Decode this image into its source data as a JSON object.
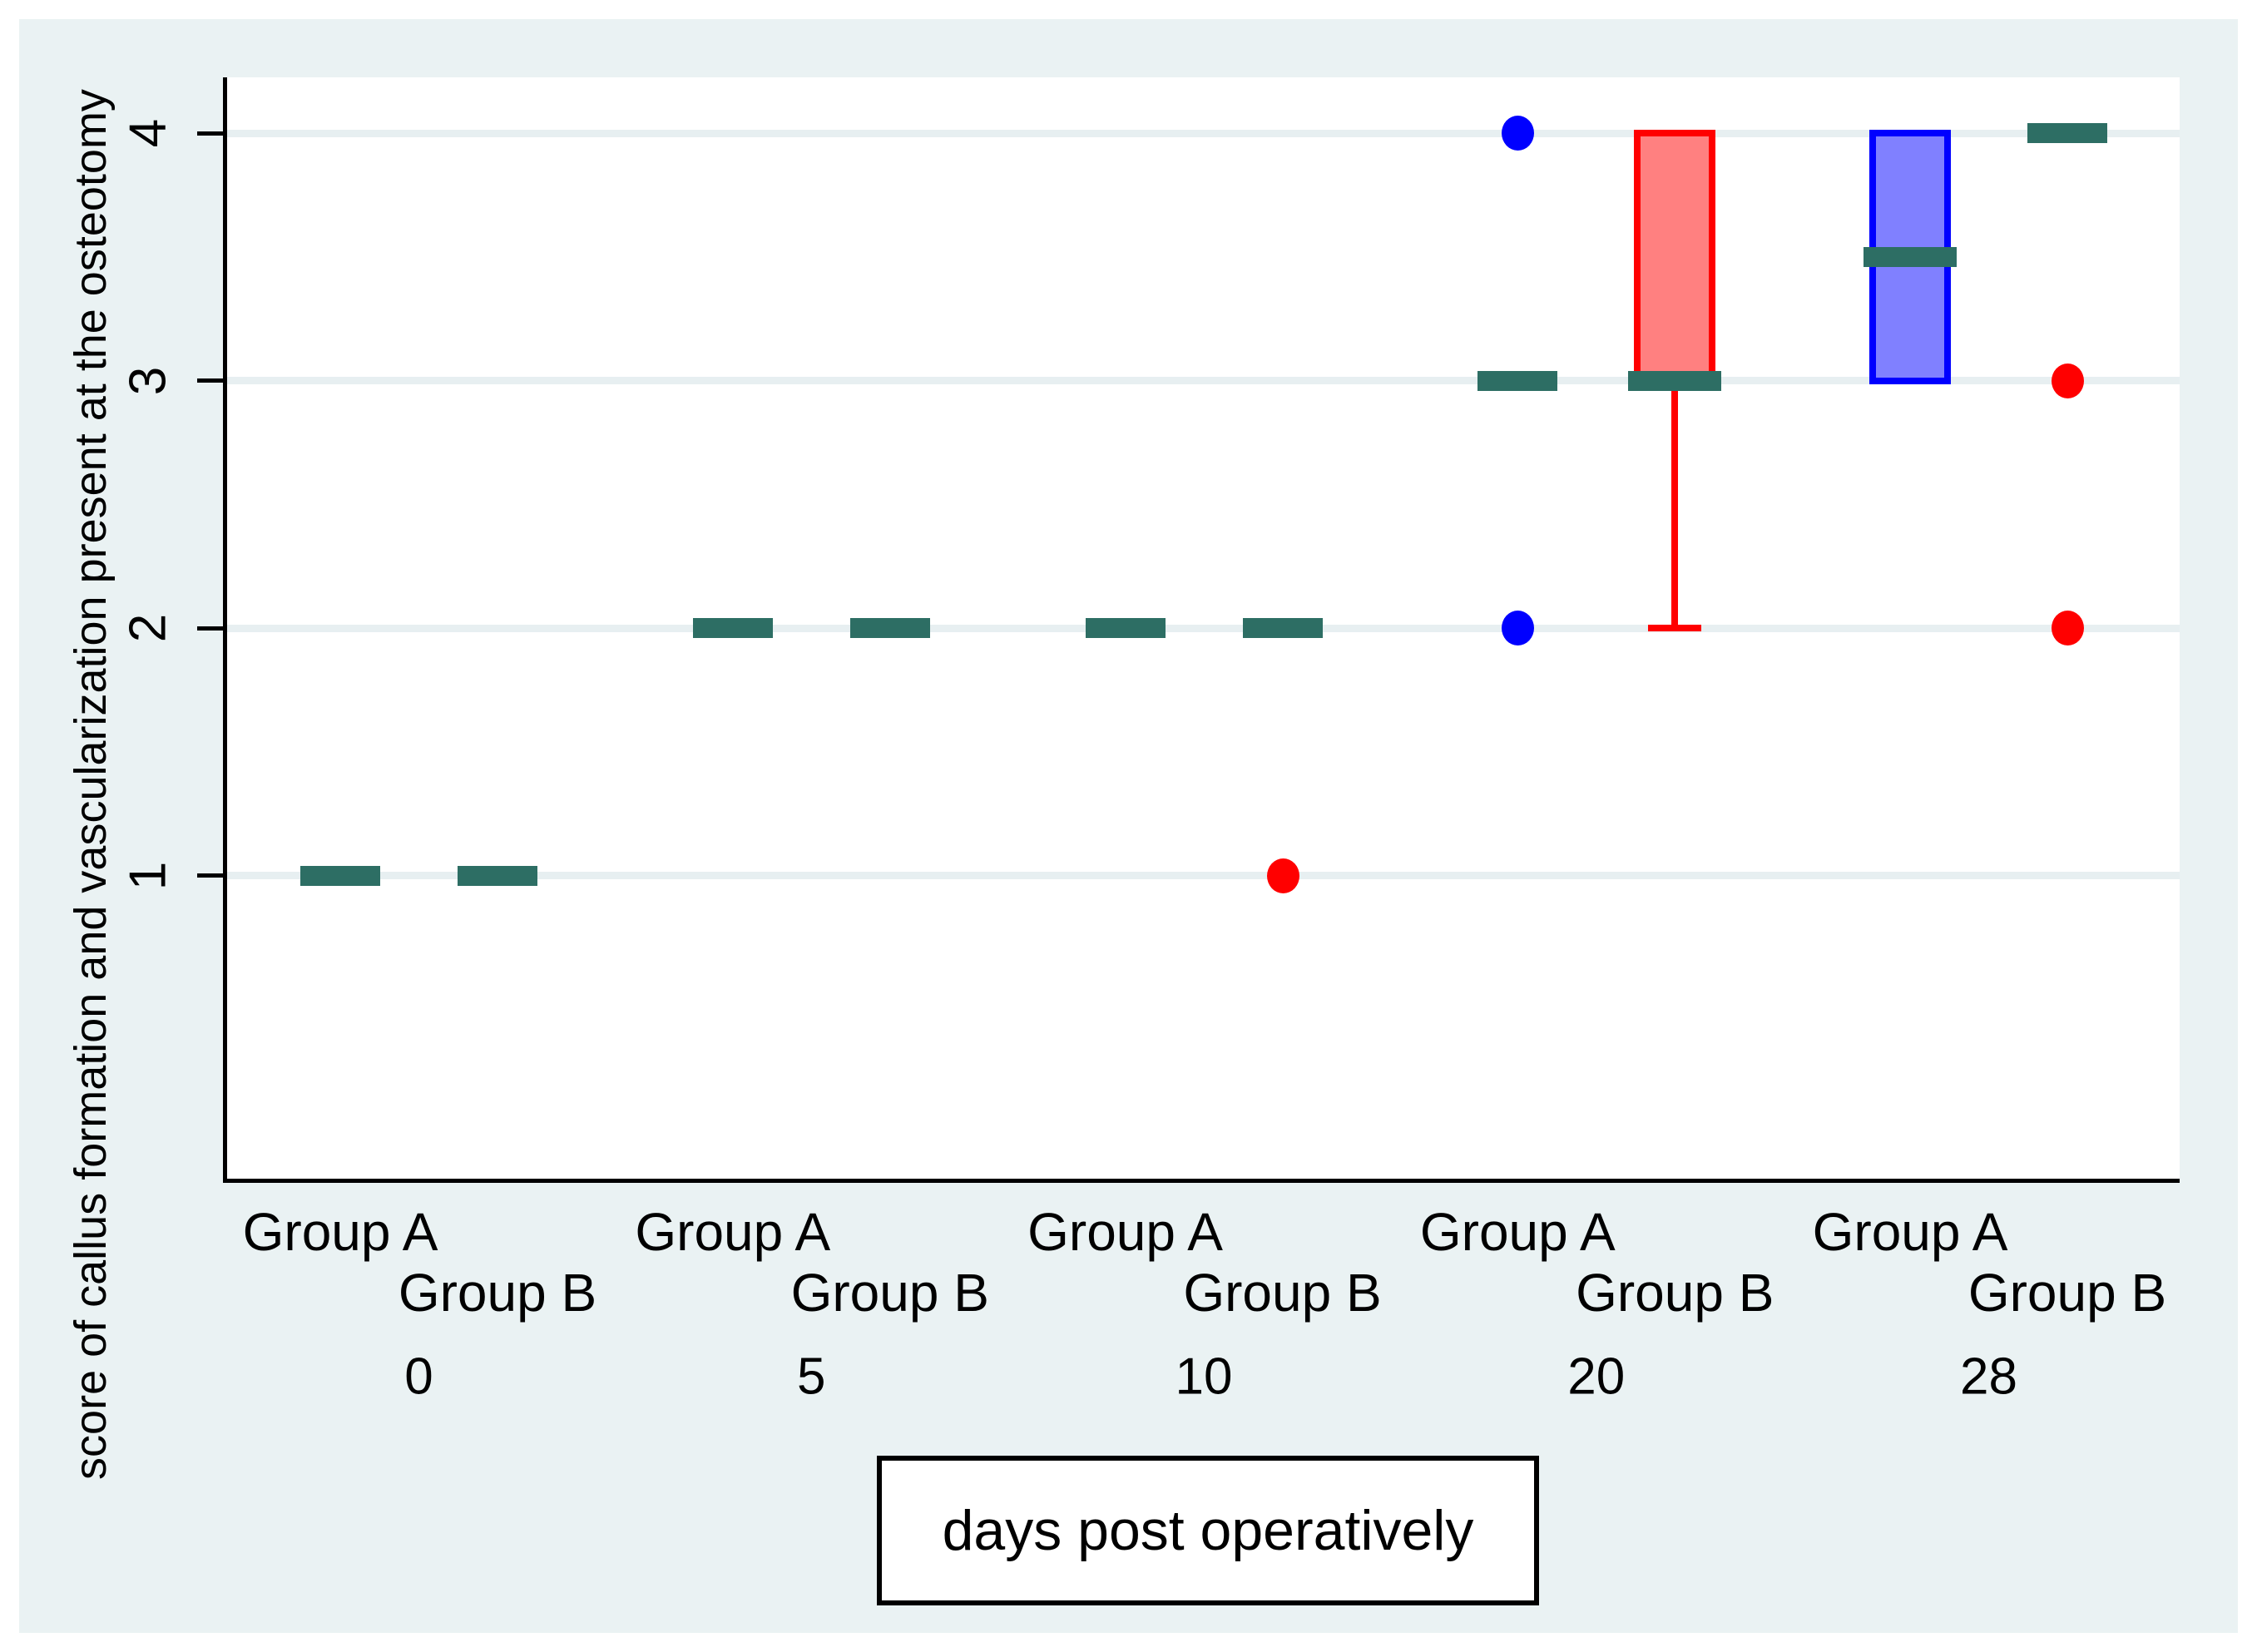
{
  "figure": {
    "background_color": "#eaf2f3",
    "plot_background": "#ffffff",
    "gridline_color": "#e7eff1",
    "y_axis": {
      "title": "score of callus formation and vascularization present at the osteotomy",
      "tick_labels": [
        "4",
        "3",
        "2",
        "1"
      ],
      "tick_values": [
        4,
        3,
        2,
        1
      ]
    },
    "x_axis": {
      "title": "days post operatively",
      "day_labels": [
        "0",
        "5",
        "10",
        "20",
        "28"
      ]
    }
  },
  "chart_data": {
    "type": "boxplot",
    "title": "",
    "xlabel": "days post operatively",
    "ylabel": "score of callus formation and vascularization present at the osteotomy",
    "y_ticks": [
      1,
      2,
      3,
      4
    ],
    "ylim": [
      0,
      4.3
    ],
    "grid": true,
    "categories": [
      "0",
      "5",
      "10",
      "20",
      "28"
    ],
    "median_color": "#2d6e64",
    "series": [
      {
        "name": "Group A",
        "edge_color": "#0000ff",
        "fill_color": "#8080ff",
        "boxes": [
          {
            "day": "0",
            "median": 1
          },
          {
            "day": "5",
            "median": 2
          },
          {
            "day": "10",
            "median": 2
          },
          {
            "day": "20",
            "median": 3,
            "outliers": [
              4,
              2
            ]
          },
          {
            "day": "28",
            "q1": 3,
            "q3": 4,
            "median": 3.5
          }
        ]
      },
      {
        "name": "Group B",
        "edge_color": "#ff0000",
        "fill_color": "#ff8080",
        "boxes": [
          {
            "day": "0",
            "median": 1
          },
          {
            "day": "5",
            "median": 2
          },
          {
            "day": "10",
            "median": 2,
            "outliers": [
              1
            ]
          },
          {
            "day": "20",
            "q1": 3,
            "q3": 4,
            "median": 3,
            "whisker_low": 2
          },
          {
            "day": "28",
            "median": 4,
            "outliers": [
              3,
              2
            ]
          }
        ]
      }
    ]
  }
}
